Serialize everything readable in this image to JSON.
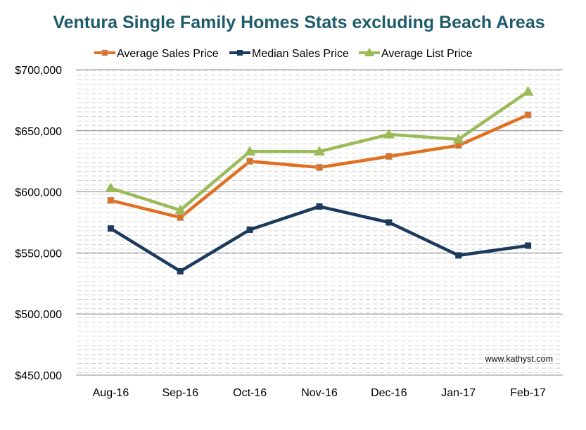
{
  "chart_data": {
    "type": "line",
    "title": "Ventura Single Family Homes Stats excluding Beach Areas",
    "subtitle": "",
    "xlabel": "",
    "ylabel": "",
    "categories": [
      "Aug-16",
      "Sep-16",
      "Oct-16",
      "Nov-16",
      "Dec-16",
      "Jan-17",
      "Feb-17"
    ],
    "series": [
      {
        "name": "Average Sales Price",
        "color": "#E07020",
        "marker": "square",
        "values": [
          593000,
          579000,
          625000,
          620000,
          629000,
          638000,
          663000
        ]
      },
      {
        "name": "Median Sales Price",
        "color": "#1B3A5C",
        "marker": "square",
        "values": [
          570000,
          535000,
          569000,
          588000,
          575000,
          548000,
          556000
        ]
      },
      {
        "name": "Average List Price",
        "color": "#9BBB59",
        "marker": "triangle",
        "values": [
          603000,
          585000,
          633000,
          633000,
          647000,
          643000,
          682000
        ]
      }
    ],
    "ylim": [
      450000,
      700000
    ],
    "yticks": [
      450000,
      500000,
      550000,
      600000,
      650000,
      700000
    ],
    "ytick_labels": [
      "$450,000",
      "$500,000",
      "$550,000",
      "$600,000",
      "$650,000",
      "$700,000"
    ],
    "grid": true,
    "legend_position": "top",
    "annotation": "www.kathyst.com",
    "title_color": "#1F5C6B"
  }
}
